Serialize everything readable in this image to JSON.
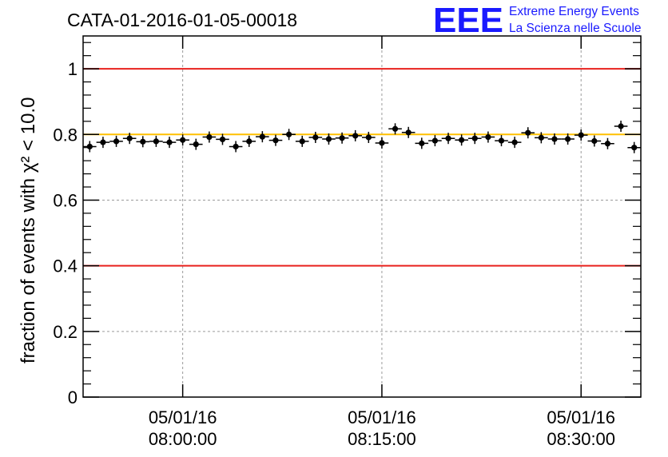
{
  "chart_data": {
    "type": "scatter",
    "title": "CATA-01-2016-01-05-00018",
    "xlabel": "",
    "ylabel": "fraction of events with",
    "ylabel_math": "χ² < 10.0",
    "ylim": [
      0,
      1.1
    ],
    "yticks": [
      0,
      0.2,
      0.4,
      0.6,
      0.8,
      1
    ],
    "ytick_labels": [
      "0",
      "0.2",
      "0.4",
      "0.6",
      "0.8",
      "1"
    ],
    "xlim": [
      "07:52:30",
      "08:34:30"
    ],
    "xticks": [
      {
        "date": "05/01/16",
        "time": "08:00:00"
      },
      {
        "date": "05/01/16",
        "time": "08:15:00"
      },
      {
        "date": "05/01/16",
        "time": "08:30:00"
      }
    ],
    "grid": true,
    "reference_lines": [
      {
        "y": 1.0,
        "color": "#e8211d"
      },
      {
        "y": 0.8,
        "color": "#ffc000"
      },
      {
        "y": 0.4,
        "color": "#e8211d"
      }
    ],
    "series": [
      {
        "marker_color": "#000000",
        "x": [
          "07:53:00",
          "07:54:00",
          "07:55:00",
          "07:56:00",
          "07:57:00",
          "07:58:00",
          "07:59:00",
          "08:00:00",
          "08:01:00",
          "08:02:00",
          "08:03:00",
          "08:04:00",
          "08:05:00",
          "08:06:00",
          "08:07:00",
          "08:08:00",
          "08:09:00",
          "08:10:00",
          "08:11:00",
          "08:12:00",
          "08:13:00",
          "08:14:00",
          "08:15:00",
          "08:16:00",
          "08:17:00",
          "08:18:00",
          "08:19:00",
          "08:20:00",
          "08:21:00",
          "08:22:00",
          "08:23:00",
          "08:24:00",
          "08:25:00",
          "08:26:00",
          "08:27:00",
          "08:28:00",
          "08:29:00",
          "08:30:00",
          "08:31:00",
          "08:32:00",
          "08:33:00",
          "08:34:00"
        ],
        "y": [
          0.763,
          0.776,
          0.779,
          0.788,
          0.778,
          0.779,
          0.776,
          0.783,
          0.77,
          0.792,
          0.785,
          0.763,
          0.779,
          0.793,
          0.782,
          0.8,
          0.779,
          0.791,
          0.786,
          0.789,
          0.796,
          0.791,
          0.774,
          0.817,
          0.806,
          0.773,
          0.781,
          0.788,
          0.783,
          0.788,
          0.792,
          0.781,
          0.776,
          0.805,
          0.79,
          0.786,
          0.786,
          0.798,
          0.78,
          0.772,
          0.825,
          0.76
        ]
      }
    ]
  },
  "logo": {
    "mark": "EEE",
    "line1": "Extreme Energy Events",
    "line2": "La Scienza nelle Scuole",
    "color": "#1a1aff"
  }
}
